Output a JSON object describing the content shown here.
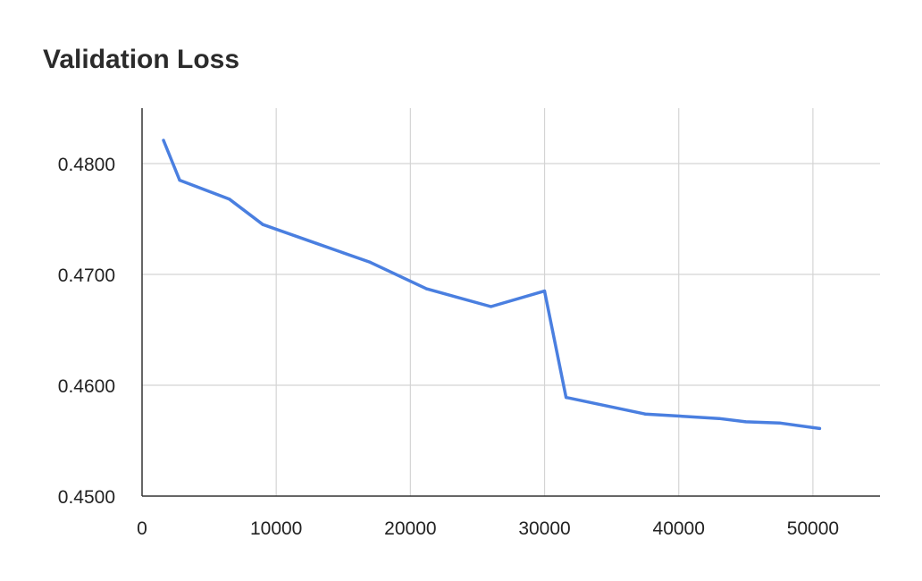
{
  "chart_data": {
    "type": "line",
    "title": "Validation Loss",
    "xlabel": "",
    "ylabel": "",
    "xlim": [
      0,
      55000
    ],
    "ylim": [
      0.45,
      0.485
    ],
    "x_ticks": [
      0,
      10000,
      20000,
      30000,
      40000,
      50000
    ],
    "x_tick_labels": [
      "0",
      "10000",
      "20000",
      "30000",
      "40000",
      "50000"
    ],
    "y_ticks": [
      0.45,
      0.46,
      0.47,
      0.48
    ],
    "y_tick_labels": [
      "0.4500",
      "0.4600",
      "0.4700",
      "0.4800"
    ],
    "grid": true,
    "legend": "none",
    "series": [
      {
        "color": "#4a7fe0",
        "x": [
          1600,
          2800,
          6500,
          9000,
          13000,
          17000,
          21200,
          26000,
          30000,
          31600,
          37500,
          43000,
          45000,
          47500,
          50500
        ],
        "y": [
          0.4821,
          0.4785,
          0.4768,
          0.4745,
          0.4728,
          0.4711,
          0.4687,
          0.4671,
          0.4685,
          0.4589,
          0.4574,
          0.457,
          0.4567,
          0.4566,
          0.4561
        ]
      }
    ]
  }
}
